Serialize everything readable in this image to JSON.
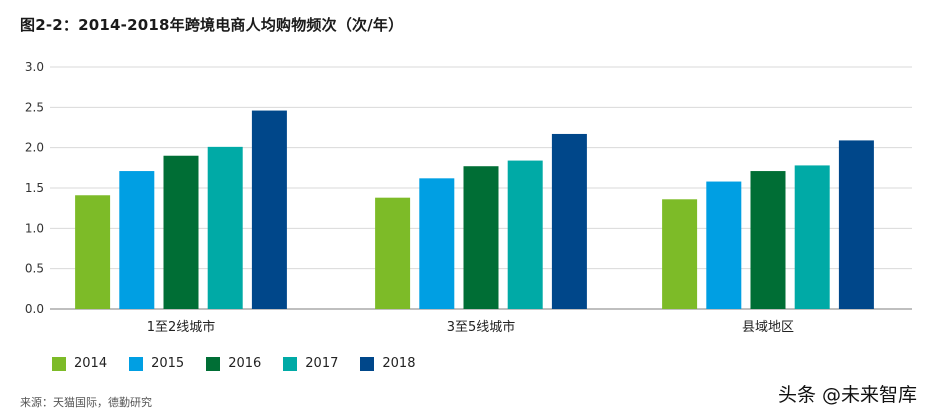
{
  "title": "图2-2：2014-2018年跨境电商人均购物频次（次/年）",
  "source": "来源：天猫国际，德勤研究",
  "watermark": "头条 @未来智库",
  "chart_data": {
    "type": "bar",
    "title": "图2-2：2014-2018年跨境电商人均购物频次（次/年）",
    "categories": [
      "1至2线城市",
      "3至5线城市",
      "县域地区"
    ],
    "series": [
      {
        "name": "2014",
        "color": "#7dbb28",
        "values": [
          1.41,
          1.38,
          1.36
        ]
      },
      {
        "name": "2015",
        "color": "#009fe3",
        "values": [
          1.71,
          1.62,
          1.58
        ]
      },
      {
        "name": "2016",
        "color": "#006e35",
        "values": [
          1.9,
          1.77,
          1.71
        ]
      },
      {
        "name": "2017",
        "color": "#00aaa6",
        "values": [
          2.01,
          1.84,
          1.78
        ]
      },
      {
        "name": "2018",
        "color": "#00478a",
        "values": [
          2.46,
          2.17,
          2.09
        ]
      }
    ],
    "yticks": [
      "0.0",
      "0.5",
      "1.0",
      "1.5",
      "2.0",
      "2.5",
      "3.0"
    ],
    "ylim": [
      0,
      3.0
    ],
    "grid": true,
    "legend_position": "bottom-left"
  }
}
